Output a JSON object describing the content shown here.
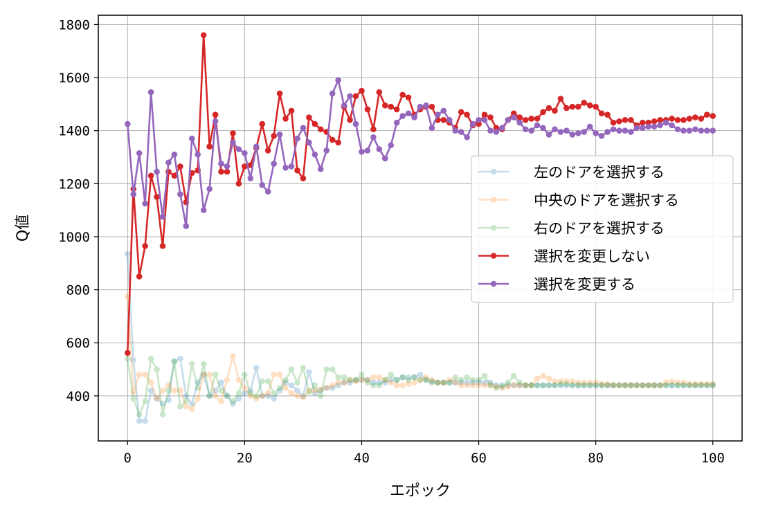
{
  "chart_data": {
    "type": "line",
    "xlabel": "エポック",
    "ylabel": "Q値",
    "xlim": [
      -5,
      105
    ],
    "ylim": [
      230,
      1835
    ],
    "xticks": [
      0,
      20,
      40,
      60,
      80,
      100
    ],
    "yticks": [
      400,
      600,
      800,
      1000,
      1200,
      1400,
      1600,
      1800
    ],
    "grid": true,
    "legend_position": "center-right",
    "x": [
      0,
      1,
      2,
      3,
      4,
      5,
      6,
      7,
      8,
      9,
      10,
      11,
      12,
      13,
      14,
      15,
      16,
      17,
      18,
      19,
      20,
      21,
      22,
      23,
      24,
      25,
      26,
      27,
      28,
      29,
      30,
      31,
      32,
      33,
      34,
      35,
      36,
      37,
      38,
      39,
      40,
      41,
      42,
      43,
      44,
      45,
      46,
      47,
      48,
      49,
      50,
      51,
      52,
      53,
      54,
      55,
      56,
      57,
      58,
      59,
      60,
      61,
      62,
      63,
      64,
      65,
      66,
      67,
      68,
      69,
      70,
      71,
      72,
      73,
      74,
      75,
      76,
      77,
      78,
      79,
      80,
      81,
      82,
      83,
      84,
      85,
      86,
      87,
      88,
      89,
      90,
      91,
      92,
      93,
      94,
      95,
      96,
      97,
      98,
      99,
      100
    ],
    "series": [
      {
        "name": "左のドアを選択する",
        "color": "#1f77b4",
        "faded": true,
        "values": [
          935,
          535,
          305,
          305,
          420,
          390,
          370,
          385,
          530,
          540,
          400,
          370,
          450,
          480,
          400,
          420,
          450,
          400,
          370,
          390,
          410,
          420,
          505,
          400,
          400,
          390,
          420,
          450,
          440,
          420,
          400,
          490,
          410,
          420,
          430,
          430,
          440,
          450,
          450,
          460,
          460,
          460,
          450,
          450,
          450,
          460,
          460,
          470,
          470,
          470,
          480,
          460,
          455,
          450,
          450,
          450,
          450,
          450,
          450,
          450,
          450,
          450,
          450,
          440,
          440,
          440,
          440,
          440,
          440,
          440,
          440,
          440,
          440,
          440,
          440,
          440,
          440,
          440,
          440,
          440,
          440,
          440,
          440,
          440,
          440,
          440,
          440,
          440,
          440,
          440,
          440,
          440,
          440,
          440,
          440,
          440,
          440,
          440,
          440,
          440,
          440
        ]
      },
      {
        "name": "中央のドアを選択する",
        "color": "#ff7f0e",
        "faded": true,
        "values": [
          775,
          415,
          480,
          480,
          450,
          390,
          420,
          440,
          420,
          420,
          360,
          350,
          390,
          480,
          480,
          400,
          380,
          460,
          550,
          460,
          430,
          400,
          390,
          400,
          410,
          480,
          480,
          430,
          410,
          400,
          395,
          420,
          420,
          425,
          430,
          440,
          450,
          450,
          460,
          455,
          460,
          460,
          470,
          470,
          460,
          450,
          440,
          440,
          445,
          450,
          460,
          470,
          460,
          450,
          450,
          460,
          450,
          440,
          440,
          440,
          440,
          440,
          440,
          435,
          430,
          435,
          440,
          440,
          440,
          440,
          465,
          475,
          465,
          455,
          455,
          455,
          455,
          450,
          450,
          450,
          450,
          445,
          445,
          440,
          440,
          440,
          440,
          440,
          440,
          440,
          440,
          440,
          450,
          455,
          450,
          450,
          445,
          445,
          445,
          445,
          445
        ]
      },
      {
        "name": "右のドアを選択する",
        "color": "#2ca02c",
        "faded": true,
        "values": [
          540,
          390,
          330,
          380,
          540,
          500,
          330,
          420,
          530,
          360,
          380,
          520,
          430,
          520,
          400,
          480,
          420,
          400,
          380,
          410,
          480,
          410,
          400,
          455,
          455,
          410,
          430,
          460,
          500,
          450,
          505,
          415,
          440,
          400,
          500,
          500,
          470,
          470,
          460,
          460,
          480,
          450,
          440,
          440,
          460,
          480,
          460,
          470,
          460,
          470,
          460,
          460,
          450,
          450,
          450,
          450,
          470,
          460,
          470,
          460,
          460,
          475,
          440,
          430,
          435,
          450,
          475,
          450,
          440,
          440,
          440,
          440,
          440,
          440,
          445,
          445,
          440,
          440,
          440,
          440,
          440,
          440,
          440,
          440,
          440,
          440,
          440,
          440,
          440,
          440,
          440,
          440,
          440,
          440,
          440,
          440,
          440,
          440,
          440,
          440,
          440
        ]
      },
      {
        "name": "選択を変更しない",
        "color": "#d62728",
        "faded": false,
        "values": [
          562,
          1180,
          850,
          965,
          1230,
          1150,
          965,
          1245,
          1230,
          1265,
          1130,
          1240,
          1250,
          1760,
          1340,
          1460,
          1245,
          1245,
          1390,
          1200,
          1265,
          1270,
          1335,
          1425,
          1325,
          1380,
          1540,
          1445,
          1475,
          1250,
          1220,
          1450,
          1425,
          1405,
          1395,
          1365,
          1355,
          1490,
          1440,
          1530,
          1550,
          1480,
          1405,
          1545,
          1495,
          1490,
          1480,
          1535,
          1525,
          1460,
          1480,
          1490,
          1490,
          1440,
          1440,
          1430,
          1410,
          1470,
          1460,
          1420,
          1425,
          1460,
          1450,
          1410,
          1405,
          1440,
          1465,
          1450,
          1440,
          1445,
          1445,
          1470,
          1485,
          1475,
          1520,
          1485,
          1490,
          1490,
          1505,
          1495,
          1490,
          1465,
          1460,
          1430,
          1435,
          1440,
          1440,
          1420,
          1430,
          1430,
          1435,
          1440,
          1440,
          1445,
          1440,
          1440,
          1445,
          1450,
          1445,
          1460,
          1455
        ]
      },
      {
        "name": "選択を変更する",
        "color": "#9467bd",
        "faded": false,
        "values": [
          1425,
          1160,
          1315,
          1125,
          1545,
          1245,
          1075,
          1280,
          1310,
          1160,
          1040,
          1370,
          1310,
          1100,
          1180,
          1435,
          1275,
          1265,
          1355,
          1330,
          1315,
          1220,
          1340,
          1195,
          1170,
          1275,
          1385,
          1260,
          1265,
          1370,
          1410,
          1355,
          1310,
          1255,
          1325,
          1540,
          1590,
          1495,
          1530,
          1425,
          1320,
          1325,
          1375,
          1330,
          1295,
          1345,
          1430,
          1455,
          1465,
          1450,
          1490,
          1495,
          1410,
          1460,
          1475,
          1440,
          1400,
          1395,
          1375,
          1425,
          1440,
          1440,
          1400,
          1395,
          1410,
          1440,
          1450,
          1430,
          1405,
          1400,
          1420,
          1410,
          1385,
          1405,
          1395,
          1400,
          1385,
          1390,
          1395,
          1415,
          1390,
          1380,
          1395,
          1405,
          1400,
          1400,
          1395,
          1410,
          1410,
          1415,
          1415,
          1420,
          1430,
          1420,
          1405,
          1400,
          1400,
          1405,
          1400,
          1400,
          1400
        ]
      }
    ]
  }
}
